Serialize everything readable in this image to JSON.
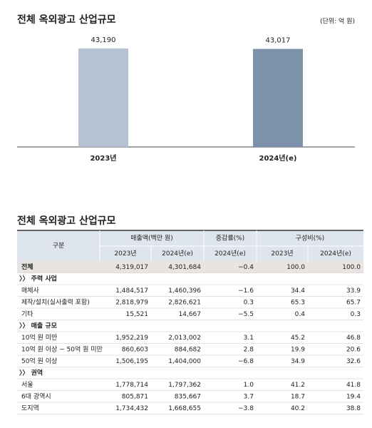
{
  "chart_data": {
    "type": "bar",
    "title": "전체 옥외광고 산업규모",
    "unit": "(단위: 억 원)",
    "categories": [
      "2023년",
      "2024년(e)"
    ],
    "values": [
      43190,
      43017
    ],
    "value_labels": [
      "43,190",
      "43,017"
    ],
    "colors": [
      "#b4c2d4",
      "#7d91ab"
    ]
  },
  "table": {
    "title": "전체 옥외광고 산업규모",
    "header": {
      "label": "구분",
      "groups": [
        "매출액(백만 원)",
        "증감률(%)",
        "구성비(%)"
      ],
      "sub": [
        "2023년",
        "2024년(e)",
        "2024년(e)",
        "2023년",
        "2024년(e)"
      ]
    },
    "rows": [
      {
        "label": "전체",
        "cells": [
          "4,319,017",
          "4,301,684",
          "−0.4",
          "100.0",
          "100.0"
        ]
      },
      {
        "section": "〉〉 주력 사업"
      },
      {
        "label": "매체사",
        "cells": [
          "1,484,517",
          "1,460,396",
          "−1.6",
          "34.4",
          "33.9"
        ]
      },
      {
        "label": "제작/설치(실사출력 포함)",
        "cells": [
          "2,818,979",
          "2,826,621",
          "0.3",
          "65.3",
          "65.7"
        ]
      },
      {
        "label": "기타",
        "cells": [
          "15,521",
          "14,667",
          "−5.5",
          "0.4",
          "0.3"
        ]
      },
      {
        "section": "〉〉 매출 규모"
      },
      {
        "label": "10억 원 미만",
        "cells": [
          "1,952,219",
          "2,013,002",
          "3.1",
          "45.2",
          "46.8"
        ]
      },
      {
        "label": "10억 원 이상 ~ 50억 원 미만",
        "cells": [
          "860,603",
          "884,682",
          "2.8",
          "19.9",
          "20.6"
        ]
      },
      {
        "label": "50억 원 이상",
        "cells": [
          "1,506,195",
          "1,404,000",
          "−6.8",
          "34.9",
          "32.6"
        ]
      },
      {
        "section": "〉〉 권역"
      },
      {
        "label": "서울",
        "cells": [
          "1,778,714",
          "1,797,362",
          "1.0",
          "41.2",
          "41.8"
        ]
      },
      {
        "label": "6대 광역시",
        "cells": [
          "805,871",
          "835,667",
          "3.7",
          "18.7",
          "19.4"
        ]
      },
      {
        "label": "도지역",
        "cells": [
          "1,734,432",
          "1,668,655",
          "−3.8",
          "40.2",
          "38.8"
        ]
      }
    ]
  }
}
